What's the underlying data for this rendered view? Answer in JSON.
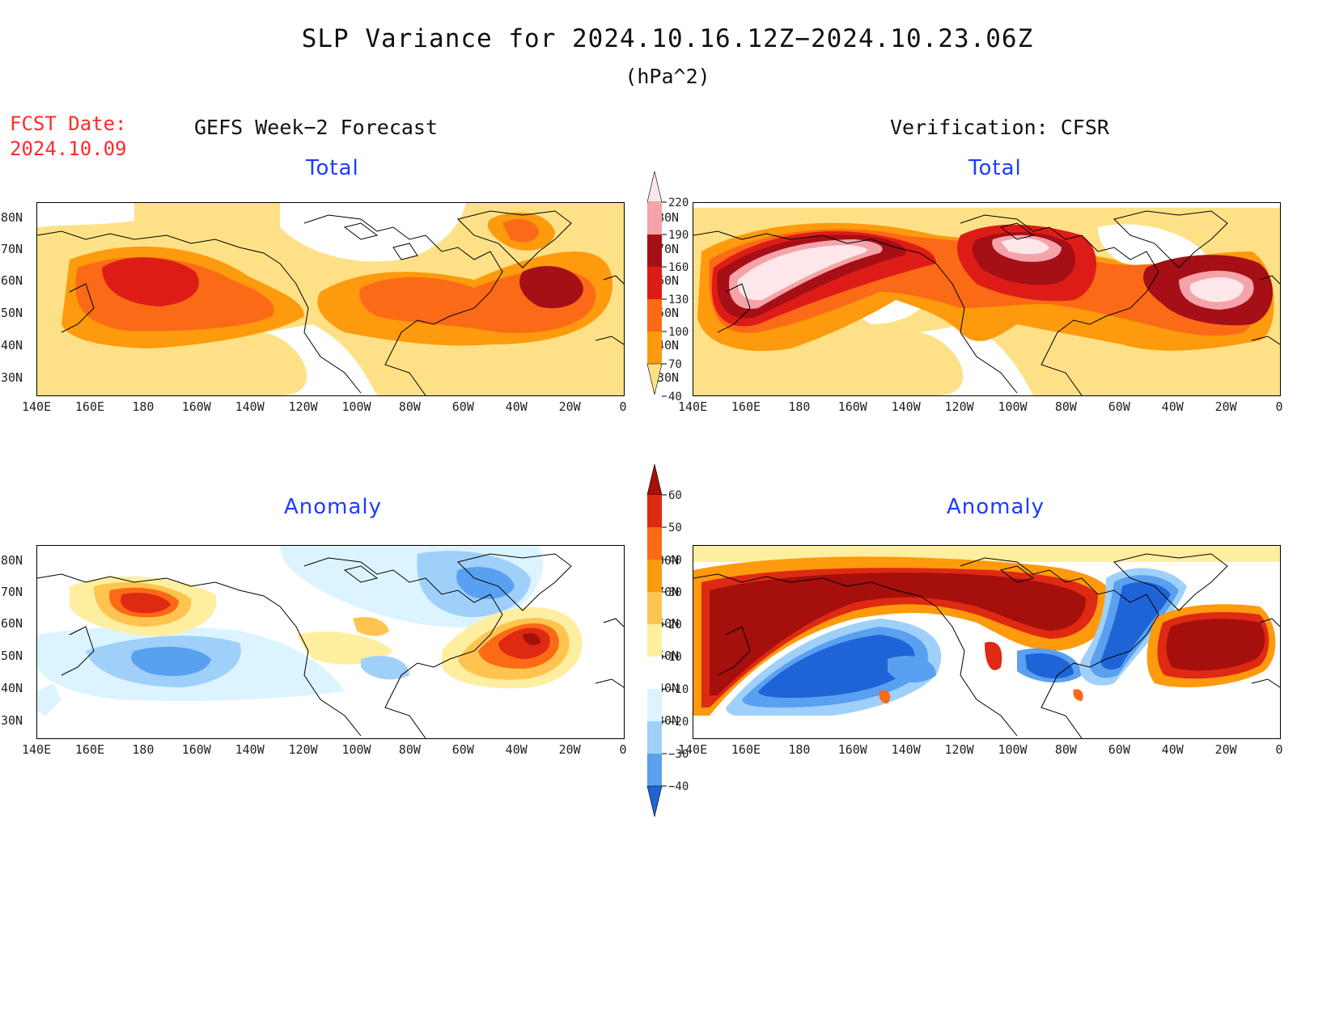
{
  "title": "SLP Variance for 2024.10.16.12Z−2024.10.23.06Z",
  "units": "(hPa^2)",
  "fcst": {
    "label": "FCST Date:",
    "date": "2024.10.09"
  },
  "left_heading": "GEFS Week−2 Forecast",
  "right_heading": "Verification: CFSR",
  "panels": {
    "tl": "Total",
    "tr": "Total",
    "bl": "Anomaly",
    "br": "Anomaly"
  },
  "lat_labels": [
    "80N",
    "70N",
    "60N",
    "50N",
    "40N",
    "30N"
  ],
  "lon_labels": [
    "140E",
    "160E",
    "180",
    "160W",
    "140W",
    "120W",
    "100W",
    "80W",
    "60W",
    "40W",
    "20W",
    "0"
  ],
  "total_colorbar": {
    "levels": [
      "220",
      "190",
      "160",
      "130",
      "100",
      "70",
      "40"
    ],
    "colors": [
      "#ffe6ea",
      "#f4a3a8",
      "#a50f15",
      "#de1c17",
      "#fb6a16",
      "#fe9a0d",
      "#fee187"
    ]
  },
  "anomaly_colorbar": {
    "levels": [
      "60",
      "50",
      "40",
      "30",
      "20",
      "10",
      "−10",
      "−20",
      "−30",
      "−40"
    ],
    "colors": [
      "#a50f0c",
      "#de2a12",
      "#fb6a16",
      "#fe9a0d",
      "#fec44f",
      "#feeea0",
      "#ffffff",
      "#dbf4ff",
      "#9fd0fa",
      "#5aa0f0",
      "#1e64d6"
    ]
  }
}
